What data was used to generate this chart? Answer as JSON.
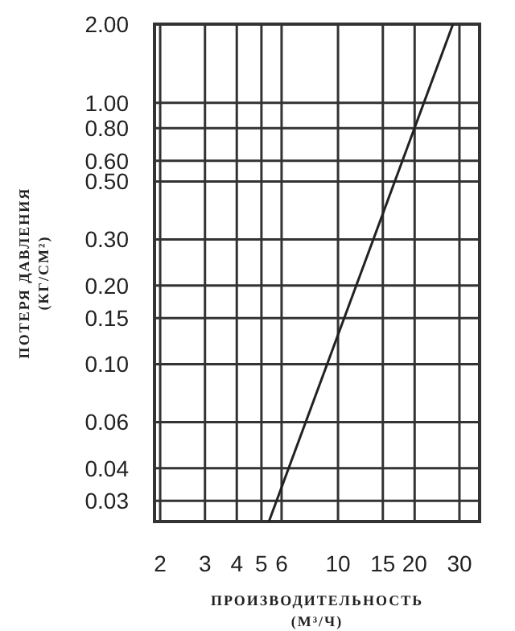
{
  "chart_data": {
    "type": "line",
    "xlabel": "ПРОИЗВОДИТЕЛЬНОСТЬ\n(М³/Ч)",
    "ylabel": "ПОТЕРЯ ДАВЛЕНИЯ\n(КГ/СМ²)",
    "log": "xy",
    "grid": true,
    "xlim": [
      1.9,
      36
    ],
    "xticks": [
      2,
      3,
      4,
      5,
      6,
      10,
      15,
      20,
      30
    ],
    "ylim": [
      0.025,
      2
    ],
    "yticks": [
      {
        "value": 0.03,
        "label": "0.03"
      },
      {
        "value": 0.04,
        "label": "0.04"
      },
      {
        "value": 0.06,
        "label": "0.06"
      },
      {
        "value": 0.1,
        "label": "0.10"
      },
      {
        "value": 0.15,
        "label": "0.15"
      },
      {
        "value": 0.2,
        "label": "0.20"
      },
      {
        "value": 0.3,
        "label": "0.30"
      },
      {
        "value": 0.5,
        "label": "0.50"
      },
      {
        "value": 0.6,
        "label": "0.60"
      },
      {
        "value": 0.8,
        "label": "0.80"
      },
      {
        "value": 1,
        "label": "1.00"
      },
      {
        "value": 2,
        "label": "2.00"
      }
    ],
    "series": [
      {
        "color": "#222222",
        "x": [
          5.35,
          28.3
        ],
        "values": [
          0.025,
          2
        ]
      }
    ]
  }
}
